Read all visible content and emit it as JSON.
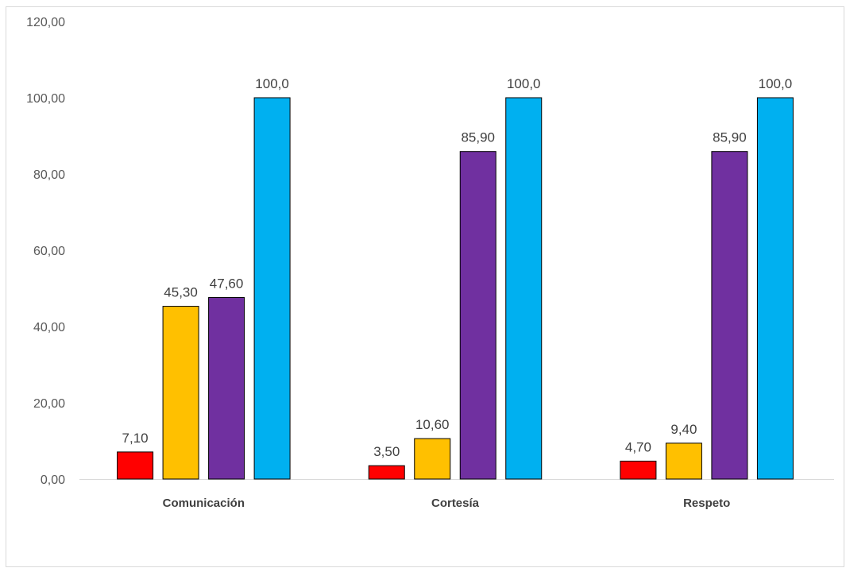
{
  "chart_data": {
    "type": "bar",
    "categories": [
      "Comunicación",
      "Cortesía",
      "Respeto"
    ],
    "series": [
      {
        "color": "#ff0000",
        "values": [
          7.1,
          3.5,
          4.7
        ],
        "labels": [
          "7,10",
          "3,50",
          "4,70"
        ]
      },
      {
        "color": "#ffc000",
        "values": [
          45.3,
          10.6,
          9.4
        ],
        "labels": [
          "45,30",
          "10,60",
          "9,40"
        ]
      },
      {
        "color": "#7030a0",
        "values": [
          47.6,
          85.9,
          85.9
        ],
        "labels": [
          "47,60",
          "85,90",
          "85,90"
        ]
      },
      {
        "color": "#00b0f0",
        "values": [
          100.0,
          100.0,
          100.0
        ],
        "labels": [
          "100,0",
          "100,0",
          "100,0"
        ]
      }
    ],
    "ylim": [
      0,
      120
    ],
    "yticks": [
      0,
      20,
      40,
      60,
      80,
      100,
      120
    ],
    "ytick_labels": [
      "0,00",
      "20,00",
      "40,00",
      "60,00",
      "80,00",
      "100,00",
      "120,00"
    ],
    "title": "",
    "xlabel": "",
    "ylabel": "",
    "grid": false,
    "legend": "none"
  }
}
